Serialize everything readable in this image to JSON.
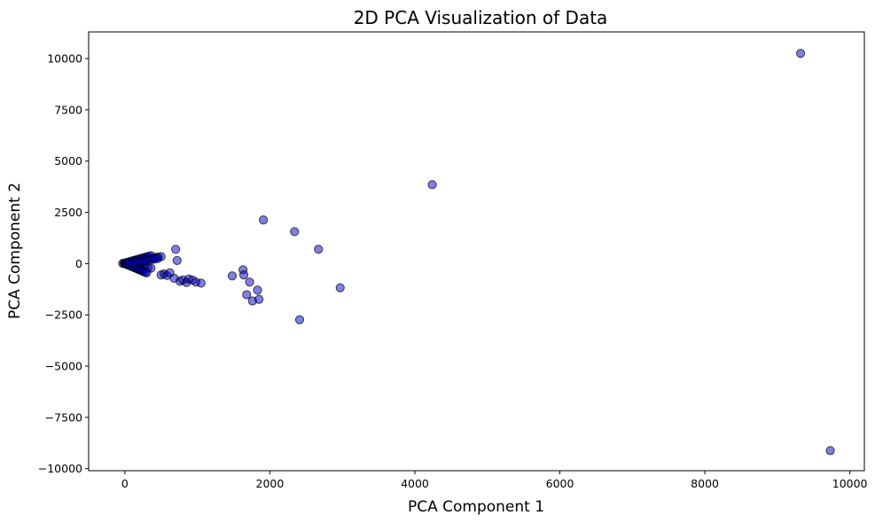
{
  "chart_data": {
    "type": "scatter",
    "title": "2D PCA Visualization of Data",
    "xlabel": "PCA Component 1",
    "ylabel": "PCA Component 2",
    "xlim": [
      -500,
      10200
    ],
    "ylim": [
      -10100,
      11300
    ],
    "x_ticks": [
      0,
      2000,
      4000,
      6000,
      8000,
      10000
    ],
    "x_tick_labels": [
      "0",
      "2000",
      "4000",
      "6000",
      "8000",
      "10000"
    ],
    "y_ticks": [
      -10000,
      -7500,
      -5000,
      -2500,
      0,
      2500,
      5000,
      7500,
      10000
    ],
    "y_tick_labels": [
      "−10000",
      "−7500",
      "−5000",
      "−2500",
      "0",
      "2500",
      "5000",
      "7500",
      "10000"
    ],
    "grid": false,
    "marker_color": "#0000cc",
    "marker_edge_color": "#000000",
    "marker_alpha": 0.5,
    "series": [
      {
        "x": [
          -30,
          -10,
          0,
          10,
          20,
          30,
          40,
          50,
          60,
          70,
          80,
          90,
          100,
          110,
          120,
          130,
          140,
          150,
          160,
          170,
          180,
          190,
          200,
          210,
          220,
          230,
          240,
          250,
          260,
          270,
          280,
          290,
          300,
          320,
          340,
          360,
          380,
          400,
          430,
          460,
          500,
          20,
          40,
          60,
          80,
          100,
          120,
          140,
          160,
          180,
          200,
          220,
          240,
          260,
          280,
          300,
          30,
          60,
          90,
          120,
          150,
          180,
          210,
          240,
          270,
          300,
          330,
          360,
          50,
          100,
          150,
          200,
          250,
          300,
          350,
          400,
          450,
          500,
          540,
          580,
          620,
          680,
          700,
          720,
          760,
          800,
          850,
          880,
          930,
          980,
          1050,
          1480,
          1630,
          1640,
          1680,
          1720,
          1760,
          1830,
          1850,
          1910,
          2340,
          2410,
          2670,
          2970,
          4240,
          9320,
          9730
        ],
        "y": [
          10,
          20,
          0,
          -10,
          30,
          40,
          -20,
          50,
          60,
          -40,
          70,
          80,
          -60,
          90,
          100,
          -80,
          110,
          120,
          -100,
          130,
          140,
          -120,
          150,
          160,
          -140,
          170,
          180,
          -160,
          190,
          200,
          -180,
          210,
          220,
          -200,
          240,
          -220,
          260,
          280,
          300,
          320,
          340,
          -30,
          -60,
          -90,
          -120,
          -150,
          -180,
          -210,
          -240,
          -270,
          -300,
          -330,
          -360,
          -390,
          -420,
          -450,
          60,
          90,
          120,
          150,
          180,
          210,
          240,
          270,
          300,
          330,
          360,
          390,
          0,
          30,
          60,
          90,
          120,
          150,
          180,
          210,
          240,
          -550,
          -500,
          -580,
          -450,
          -720,
          700,
          150,
          -860,
          -800,
          -920,
          -750,
          -800,
          -900,
          -950,
          -600,
          -300,
          -550,
          -1520,
          -900,
          -1820,
          -1290,
          -1740,
          2130,
          1560,
          -2740,
          700,
          -1180,
          3850,
          10250,
          -9120
        ]
      }
    ]
  }
}
